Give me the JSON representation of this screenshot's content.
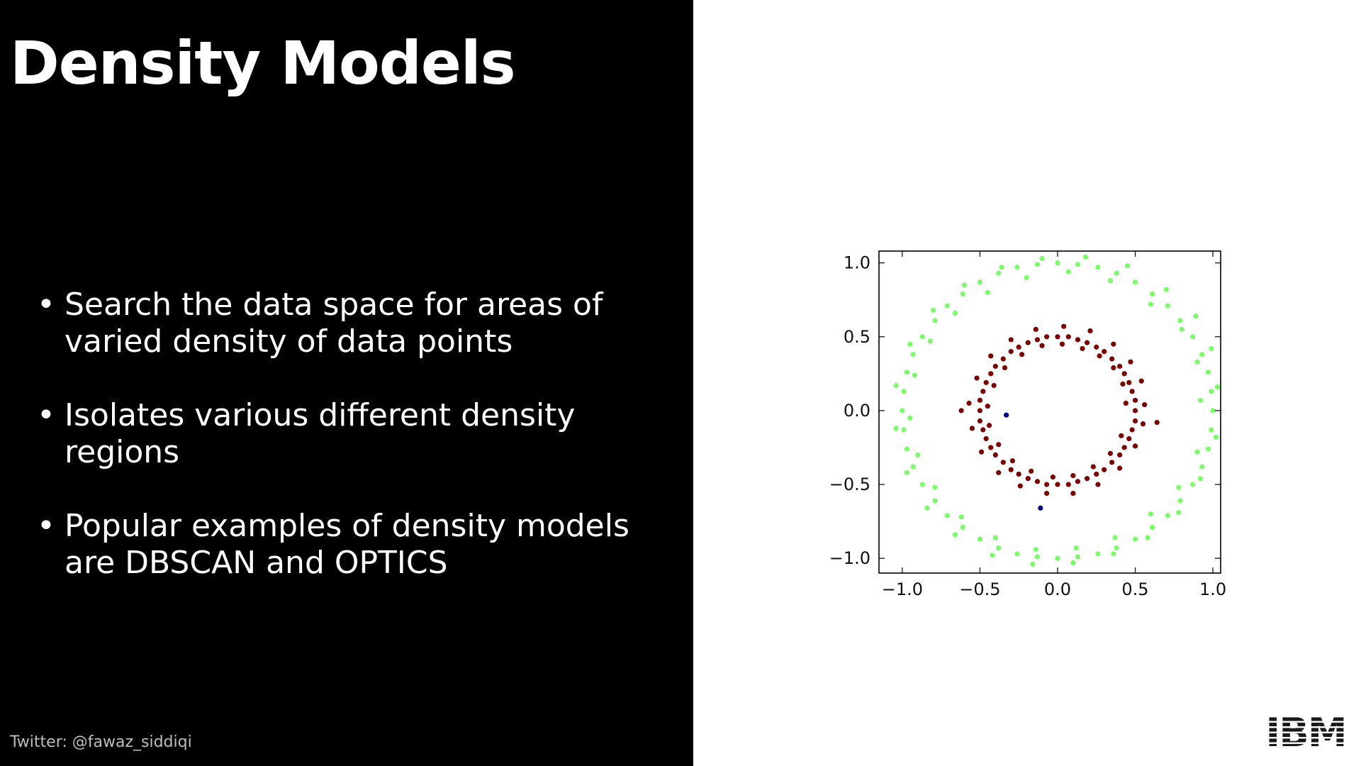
{
  "slide": {
    "title": "Density Models",
    "bullets": [
      {
        "lines": [
          "Search the data space for areas of",
          "varied density of data points"
        ]
      },
      {
        "lines": [
          "Isolates various different density",
          "regions"
        ]
      },
      {
        "lines": [
          "Popular examples of density models",
          "are DBSCAN and OPTICS"
        ]
      }
    ],
    "bullet_symbol": "•",
    "footer": "Twitter: @fawaz_siddiqi",
    "logo": "IBM",
    "colors": {
      "left_panel": "#000000",
      "right_panel": "#ffffff",
      "text": "#ffffff",
      "footer_text": "#bdbdbd"
    }
  },
  "chart_data": {
    "type": "scatter",
    "title": "",
    "xlabel": "",
    "ylabel": "",
    "xlim": [
      -1.15,
      1.05
    ],
    "ylim": [
      -1.1,
      1.08
    ],
    "xticks": [
      -1.0,
      -0.5,
      0.0,
      0.5,
      1.0
    ],
    "yticks": [
      -1.0,
      -0.5,
      0.0,
      0.5,
      1.0
    ],
    "xtick_labels": [
      "−1.0",
      "−0.5",
      "0.0",
      "0.5",
      "1.0"
    ],
    "ytick_labels": [
      "−1.0",
      "−0.5",
      "0.0",
      "0.5",
      "1.0"
    ],
    "grid": false,
    "legend": "none",
    "series": [
      {
        "color": "#7CFC6A",
        "points": [
          [
            1.0,
            0.0
          ],
          [
            0.99,
            0.13
          ],
          [
            0.97,
            0.26
          ],
          [
            0.93,
            0.38
          ],
          [
            0.87,
            0.5
          ],
          [
            0.79,
            0.61
          ],
          [
            0.71,
            0.71
          ],
          [
            0.61,
            0.79
          ],
          [
            0.5,
            0.87
          ],
          [
            0.38,
            0.93
          ],
          [
            0.26,
            0.97
          ],
          [
            0.13,
            0.99
          ],
          [
            0.0,
            1.0
          ],
          [
            -0.13,
            0.99
          ],
          [
            -0.26,
            0.97
          ],
          [
            -0.38,
            0.93
          ],
          [
            -0.5,
            0.87
          ],
          [
            -0.61,
            0.79
          ],
          [
            -0.71,
            0.71
          ],
          [
            -0.79,
            0.61
          ],
          [
            -0.87,
            0.5
          ],
          [
            -0.93,
            0.38
          ],
          [
            -0.97,
            0.26
          ],
          [
            -0.99,
            0.13
          ],
          [
            -1.0,
            0.0
          ],
          [
            -0.99,
            -0.13
          ],
          [
            -0.97,
            -0.26
          ],
          [
            -0.93,
            -0.38
          ],
          [
            -0.87,
            -0.5
          ],
          [
            -0.79,
            -0.61
          ],
          [
            -0.71,
            -0.71
          ],
          [
            -0.61,
            -0.79
          ],
          [
            -0.5,
            -0.87
          ],
          [
            -0.38,
            -0.93
          ],
          [
            -0.26,
            -0.97
          ],
          [
            -0.13,
            -0.99
          ],
          [
            0.0,
            -1.0
          ],
          [
            0.13,
            -0.99
          ],
          [
            0.26,
            -0.97
          ],
          [
            0.38,
            -0.93
          ],
          [
            0.5,
            -0.87
          ],
          [
            0.61,
            -0.79
          ],
          [
            0.71,
            -0.71
          ],
          [
            0.79,
            -0.61
          ],
          [
            0.87,
            -0.5
          ],
          [
            0.93,
            -0.38
          ],
          [
            0.97,
            -0.26
          ],
          [
            0.99,
            -0.13
          ],
          [
            0.92,
            0.07
          ],
          [
            0.9,
            0.33
          ],
          [
            0.8,
            0.55
          ],
          [
            0.6,
            0.72
          ],
          [
            0.34,
            0.88
          ],
          [
            0.07,
            0.94
          ],
          [
            -0.2,
            0.9
          ],
          [
            -0.45,
            0.8
          ],
          [
            -0.66,
            0.66
          ],
          [
            -0.82,
            0.47
          ],
          [
            -0.92,
            0.24
          ],
          [
            -0.95,
            -0.05
          ],
          [
            -0.9,
            -0.3
          ],
          [
            -0.79,
            -0.52
          ],
          [
            -0.62,
            -0.72
          ],
          [
            -0.4,
            -0.86
          ],
          [
            -0.14,
            -0.94
          ],
          [
            0.12,
            -0.93
          ],
          [
            0.37,
            -0.86
          ],
          [
            0.6,
            -0.7
          ],
          [
            0.78,
            -0.52
          ],
          [
            0.9,
            -0.28
          ],
          [
            1.03,
            0.16
          ],
          [
            0.99,
            0.42
          ],
          [
            0.89,
            0.64
          ],
          [
            0.7,
            0.82
          ],
          [
            0.45,
            0.98
          ],
          [
            0.18,
            1.04
          ],
          [
            -0.1,
            1.03
          ],
          [
            -0.36,
            0.97
          ],
          [
            -0.6,
            0.85
          ],
          [
            -0.8,
            0.68
          ],
          [
            -0.95,
            0.45
          ],
          [
            -1.04,
            0.17
          ],
          [
            -1.04,
            -0.12
          ],
          [
            -0.97,
            -0.42
          ],
          [
            -0.84,
            -0.66
          ],
          [
            -0.66,
            -0.84
          ],
          [
            -0.42,
            -0.98
          ],
          [
            -0.16,
            -1.04
          ],
          [
            0.1,
            -1.03
          ],
          [
            0.36,
            -0.97
          ],
          [
            0.58,
            -0.86
          ],
          [
            0.78,
            -0.69
          ],
          [
            0.92,
            -0.46
          ],
          [
            1.02,
            -0.18
          ]
        ]
      },
      {
        "color": "#7B0000",
        "points": [
          [
            0.5,
            0.0
          ],
          [
            0.5,
            0.07
          ],
          [
            0.48,
            0.13
          ],
          [
            0.46,
            0.19
          ],
          [
            0.43,
            0.25
          ],
          [
            0.4,
            0.3
          ],
          [
            0.35,
            0.35
          ],
          [
            0.3,
            0.4
          ],
          [
            0.25,
            0.43
          ],
          [
            0.19,
            0.46
          ],
          [
            0.13,
            0.48
          ],
          [
            0.07,
            0.5
          ],
          [
            0.0,
            0.5
          ],
          [
            -0.07,
            0.5
          ],
          [
            -0.13,
            0.48
          ],
          [
            -0.19,
            0.46
          ],
          [
            -0.25,
            0.43
          ],
          [
            -0.3,
            0.4
          ],
          [
            -0.35,
            0.35
          ],
          [
            -0.4,
            0.3
          ],
          [
            -0.43,
            0.25
          ],
          [
            -0.46,
            0.19
          ],
          [
            -0.48,
            0.13
          ],
          [
            -0.5,
            0.07
          ],
          [
            -0.5,
            0.0
          ],
          [
            -0.5,
            -0.07
          ],
          [
            -0.48,
            -0.13
          ],
          [
            -0.46,
            -0.19
          ],
          [
            -0.43,
            -0.25
          ],
          [
            -0.4,
            -0.3
          ],
          [
            -0.35,
            -0.35
          ],
          [
            -0.3,
            -0.4
          ],
          [
            -0.25,
            -0.43
          ],
          [
            -0.19,
            -0.46
          ],
          [
            -0.13,
            -0.48
          ],
          [
            -0.07,
            -0.5
          ],
          [
            0.0,
            -0.5
          ],
          [
            0.07,
            -0.5
          ],
          [
            0.13,
            -0.48
          ],
          [
            0.19,
            -0.46
          ],
          [
            0.25,
            -0.43
          ],
          [
            0.3,
            -0.4
          ],
          [
            0.35,
            -0.35
          ],
          [
            0.4,
            -0.3
          ],
          [
            0.43,
            -0.25
          ],
          [
            0.46,
            -0.19
          ],
          [
            0.48,
            -0.13
          ],
          [
            0.5,
            -0.07
          ],
          [
            0.56,
            0.04
          ],
          [
            0.54,
            0.2
          ],
          [
            0.47,
            0.33
          ],
          [
            0.36,
            0.45
          ],
          [
            0.21,
            0.54
          ],
          [
            0.04,
            0.57
          ],
          [
            -0.14,
            0.55
          ],
          [
            -0.3,
            0.48
          ],
          [
            -0.43,
            0.37
          ],
          [
            -0.52,
            0.22
          ],
          [
            -0.57,
            0.05
          ],
          [
            -0.55,
            -0.12
          ],
          [
            -0.49,
            -0.28
          ],
          [
            -0.38,
            -0.42
          ],
          [
            -0.24,
            -0.51
          ],
          [
            -0.07,
            -0.56
          ],
          [
            0.1,
            -0.56
          ],
          [
            0.26,
            -0.5
          ],
          [
            0.4,
            -0.39
          ],
          [
            0.5,
            -0.24
          ],
          [
            0.55,
            -0.09
          ],
          [
            0.44,
            0.05
          ],
          [
            0.42,
            0.18
          ],
          [
            0.36,
            0.29
          ],
          [
            0.27,
            0.37
          ],
          [
            0.16,
            0.42
          ],
          [
            0.03,
            0.45
          ],
          [
            -0.1,
            0.44
          ],
          [
            -0.23,
            0.38
          ],
          [
            -0.34,
            0.29
          ],
          [
            -0.41,
            0.17
          ],
          [
            -0.45,
            0.03
          ],
          [
            -0.44,
            -0.1
          ],
          [
            -0.38,
            -0.23
          ],
          [
            -0.29,
            -0.34
          ],
          [
            -0.17,
            -0.41
          ],
          [
            -0.03,
            -0.45
          ],
          [
            0.1,
            -0.44
          ],
          [
            0.23,
            -0.38
          ],
          [
            0.34,
            -0.29
          ],
          [
            0.41,
            -0.17
          ],
          [
            0.64,
            -0.08
          ],
          [
            -0.62,
            0.0
          ]
        ]
      },
      {
        "color": "#00007F",
        "points": [
          [
            -0.33,
            -0.03
          ],
          [
            -0.11,
            -0.66
          ]
        ]
      }
    ]
  }
}
